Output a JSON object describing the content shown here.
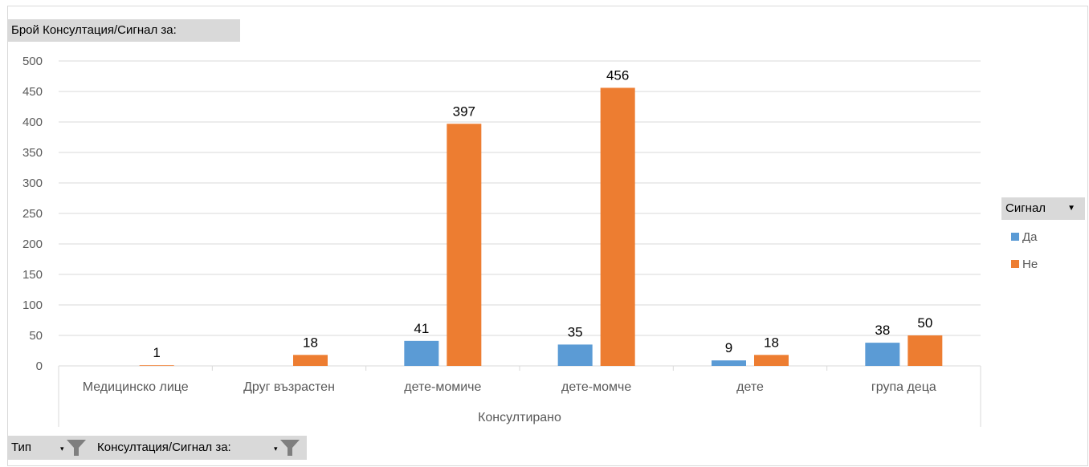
{
  "value_field_label": "Брой Консултация/Сигнал за:",
  "legend": {
    "title": "Сигнал",
    "items": [
      {
        "label": "Да",
        "color": "#5b9bd5"
      },
      {
        "label": "Не",
        "color": "#ed7d31"
      }
    ]
  },
  "filters": [
    {
      "label": "Тип"
    },
    {
      "label": "Консултация/Сигнал за:"
    }
  ],
  "chart_data": {
    "type": "bar",
    "xlabel": "Консултирано",
    "categories": [
      "Медицинско лице",
      "Друг възрастен",
      "дете-момиче",
      "дете-момче",
      "дете",
      "група деца"
    ],
    "series": [
      {
        "name": "Да",
        "color": "#5b9bd5",
        "values": [
          null,
          null,
          41,
          35,
          9,
          38
        ]
      },
      {
        "name": "Не",
        "color": "#ed7d31",
        "values": [
          1,
          18,
          397,
          456,
          18,
          50
        ]
      }
    ],
    "ylim": [
      0,
      500
    ],
    "yticks": [
      0,
      50,
      100,
      150,
      200,
      250,
      300,
      350,
      400,
      450,
      500
    ],
    "grid": true,
    "legend_position": "right"
  }
}
